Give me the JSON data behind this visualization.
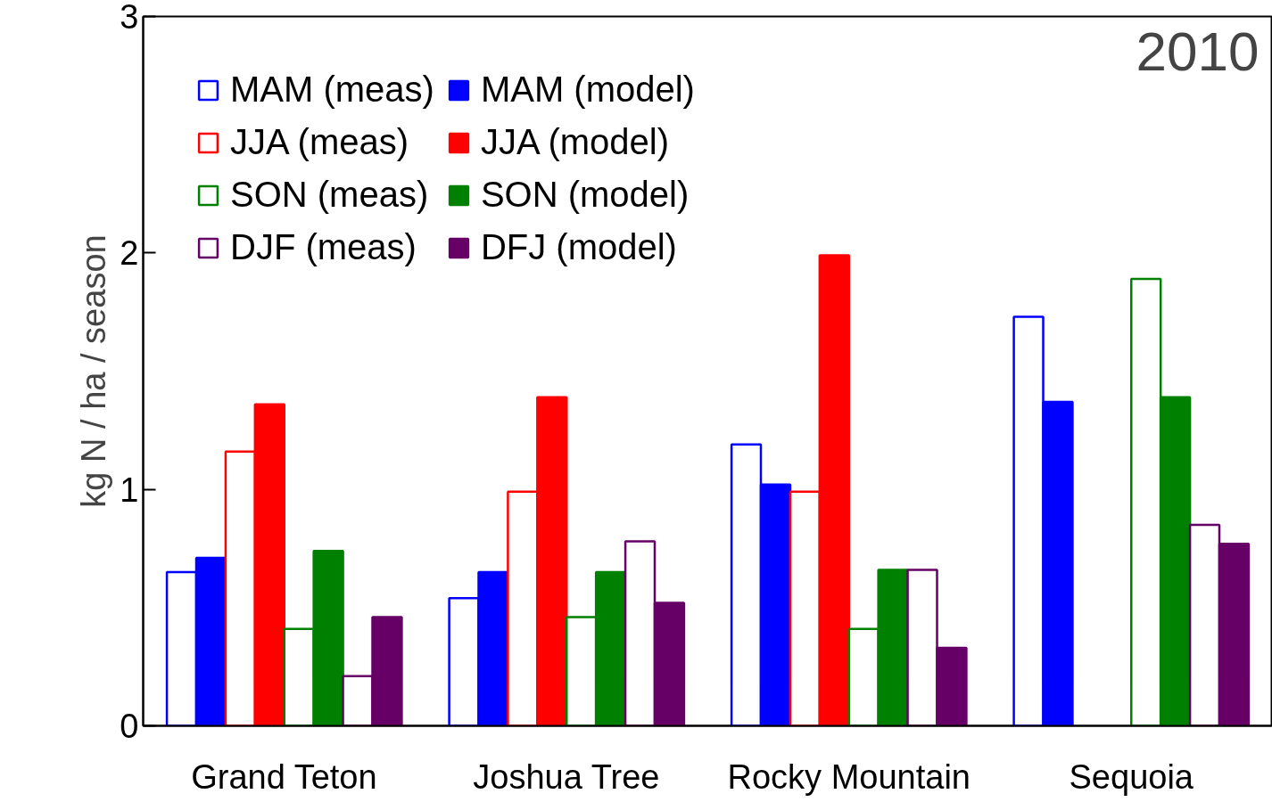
{
  "chart_data": {
    "type": "bar",
    "categories": [
      "Grand Teton",
      "Joshua Tree",
      "Rocky Mountain",
      "Sequoia"
    ],
    "ylabel": "kg N / ha / season",
    "annotations": [
      "2010"
    ],
    "ylim": [
      0,
      3
    ],
    "yticks": [
      0,
      1,
      2,
      3
    ],
    "grid": false,
    "legend": "top left",
    "series": [
      {
        "name": "MAM (meas)",
        "color": "#0000ff",
        "values": [
          0.65,
          0.54,
          1.19,
          1.73
        ]
      },
      {
        "name": "MAM (model)",
        "color": "#0000ff",
        "values": [
          0.71,
          0.65,
          1.02,
          1.37
        ]
      },
      {
        "name": "JJA (meas)",
        "color": "#ff0000",
        "values": [
          1.16,
          0.99,
          0.99,
          null
        ]
      },
      {
        "name": "JJA (model)",
        "color": "#ff0000",
        "values": [
          1.36,
          1.39,
          1.99,
          null
        ]
      },
      {
        "name": "SON (meas)",
        "color": "#008000",
        "values": [
          0.41,
          0.46,
          0.41,
          1.89
        ]
      },
      {
        "name": "SON (model)",
        "color": "#008000",
        "values": [
          0.74,
          0.65,
          0.66,
          1.39
        ]
      },
      {
        "name": "DJF (meas)",
        "color": "#660066",
        "values": [
          0.21,
          0.78,
          0.66,
          0.85
        ]
      },
      {
        "name": "DFJ (model)",
        "color": "#660066",
        "values": [
          0.46,
          0.52,
          0.33,
          0.77
        ]
      }
    ]
  }
}
